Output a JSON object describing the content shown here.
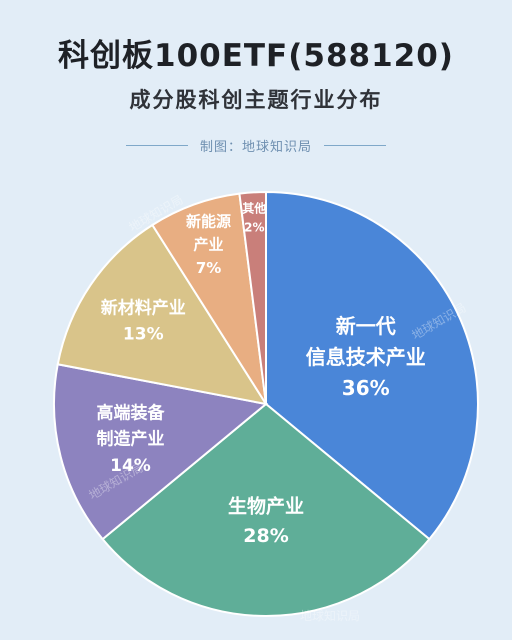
{
  "header": {
    "title": "科创板100ETF(588120)",
    "subtitle": "成分股科创主题行业分布",
    "credit": "制图：地球知识局"
  },
  "watermark": "地球知识局",
  "colors": {
    "background": "#e2edf7",
    "slices": [
      "#4a86d8",
      "#5fae98",
      "#8d83bf",
      "#d9c48a",
      "#e8ae82",
      "#c97f7a"
    ]
  },
  "chart_data": {
    "type": "pie",
    "title": "成分股科创主题行业分布",
    "start": "12 o'clock, clockwise",
    "slices": [
      {
        "label_lines": [
          "新一代",
          "信息技术产业"
        ],
        "value": 36,
        "pct": "36%"
      },
      {
        "label_lines": [
          "生物产业"
        ],
        "value": 28,
        "pct": "28%"
      },
      {
        "label_lines": [
          "高端装备",
          "制造产业"
        ],
        "value": 14,
        "pct": "14%"
      },
      {
        "label_lines": [
          "新材料产业"
        ],
        "value": 13,
        "pct": "13%"
      },
      {
        "label_lines": [
          "新能源",
          "产业"
        ],
        "value": 7,
        "pct": "7%"
      },
      {
        "label_lines": [
          "其他"
        ],
        "value": 2,
        "pct": "2%"
      }
    ]
  }
}
